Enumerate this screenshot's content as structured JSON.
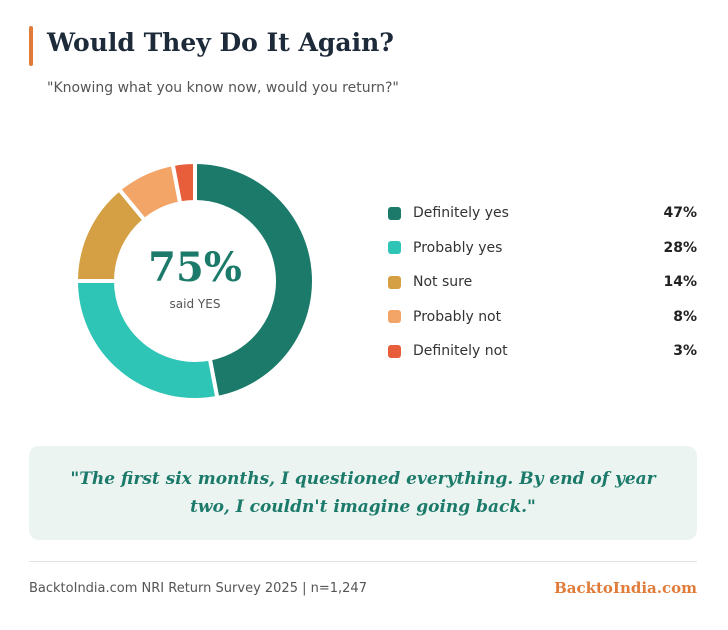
{
  "header": {
    "title": "Would They Do It Again?",
    "subtitle": "\"Knowing what you know now, would you return?\""
  },
  "chart_data": {
    "type": "pie",
    "variant": "donut",
    "categories": [
      "Definitely yes",
      "Probably yes",
      "Not sure",
      "Probably not",
      "Definitely not"
    ],
    "values": [
      47,
      28,
      14,
      8,
      3
    ],
    "value_labels": [
      "47%",
      "28%",
      "14%",
      "8%",
      "3%"
    ],
    "colors": [
      "#1c7a6a",
      "#2ec4b6",
      "#d4a043",
      "#f3a467",
      "#e85d3a"
    ],
    "center": {
      "value": "75%",
      "label": "said YES"
    },
    "legend_placement": "right"
  },
  "quote": "\"The first six months, I questioned everything. By end of year two, I couldn't imagine going back.\"",
  "footer": {
    "source": "BacktoIndia.com NRI Return Survey 2025 | n=1,247",
    "brand": "BacktoIndia.com"
  }
}
